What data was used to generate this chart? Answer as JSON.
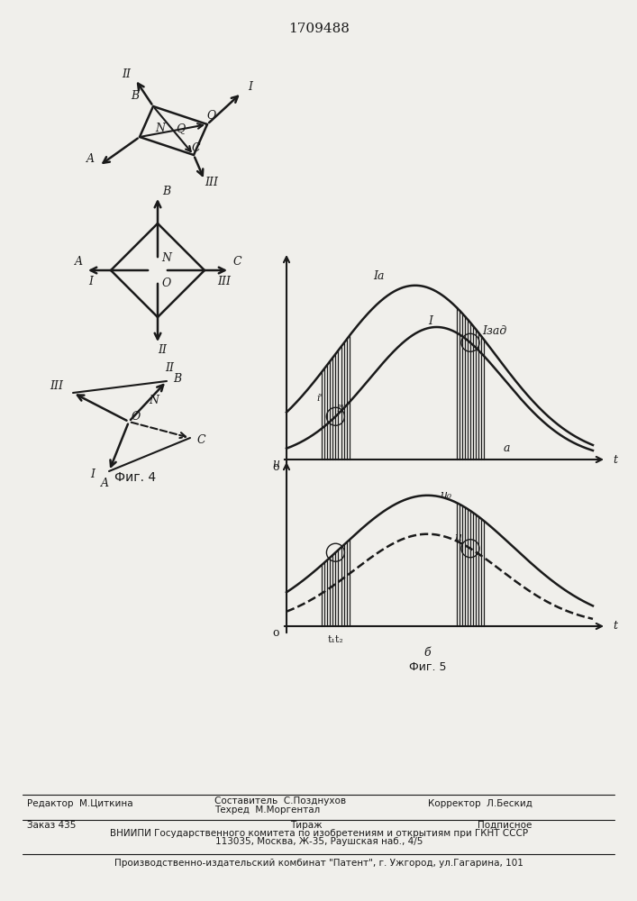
{
  "title": "1709488",
  "bg_color": "#f0efeb",
  "line_color": "#1a1a1a"
}
